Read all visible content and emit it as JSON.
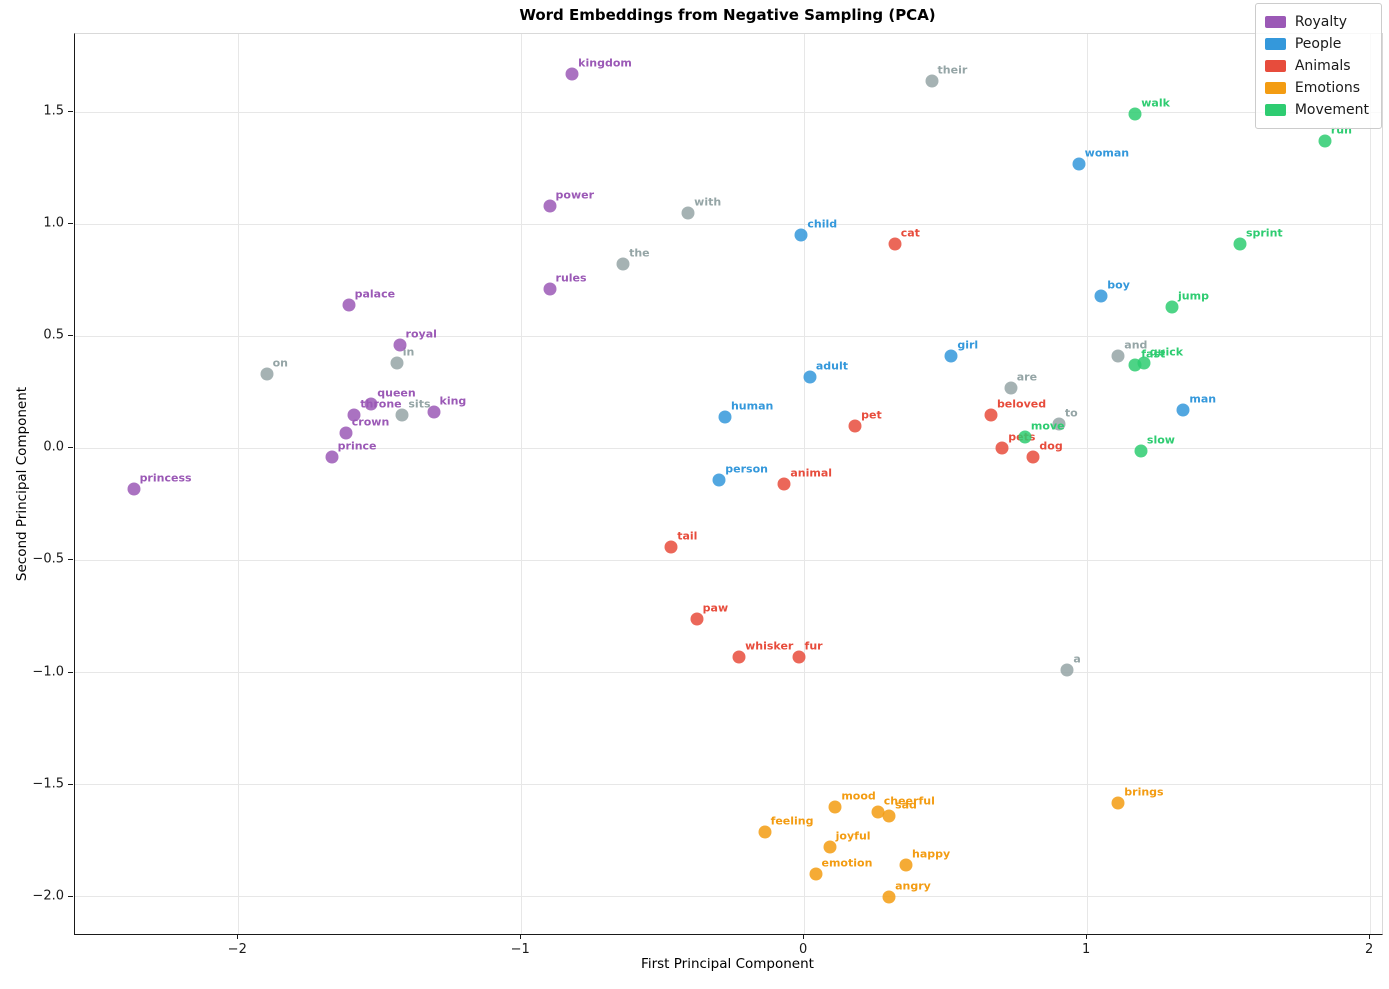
{
  "chart_data": {
    "type": "scatter",
    "title": "Word Embeddings from Negative Sampling (PCA)",
    "xlabel": "First Principal Component",
    "ylabel": "Second Principal Component",
    "grid": true,
    "legend_position": "upper right",
    "xlim": [
      -2.577,
      2.042
    ],
    "ylim": [
      -2.166,
      1.848
    ],
    "x_ticks": [
      {
        "v": -2,
        "label": "−2"
      },
      {
        "v": -1,
        "label": "−1"
      },
      {
        "v": 0,
        "label": "0"
      },
      {
        "v": 1,
        "label": "1"
      },
      {
        "v": 2,
        "label": "2"
      }
    ],
    "y_ticks": [
      {
        "v": 1.5,
        "label": "1.5"
      },
      {
        "v": 1.0,
        "label": "1.0"
      },
      {
        "v": 0.5,
        "label": "0.5"
      },
      {
        "v": 0.0,
        "label": "0.0"
      },
      {
        "v": -0.5,
        "label": "−0.5"
      },
      {
        "v": -1.0,
        "label": "−1.0"
      },
      {
        "v": -1.5,
        "label": "−1.5"
      },
      {
        "v": -2.0,
        "label": "−2.0"
      }
    ],
    "series": [
      {
        "name": "Context",
        "color": "#95a5a6",
        "in_legend": false,
        "points": [
          {
            "word": "their",
            "x": 0.45,
            "y": 1.64
          },
          {
            "word": "with",
            "x": -0.41,
            "y": 1.05
          },
          {
            "word": "the",
            "x": -0.64,
            "y": 0.82
          },
          {
            "word": "on",
            "x": -1.9,
            "y": 0.33
          },
          {
            "word": "in",
            "x": -1.44,
            "y": 0.38
          },
          {
            "word": "sits",
            "x": -1.42,
            "y": 0.15
          },
          {
            "word": "are",
            "x": 0.73,
            "y": 0.27
          },
          {
            "word": "and",
            "x": 1.11,
            "y": 0.41
          },
          {
            "word": "to",
            "x": 0.9,
            "y": 0.11
          },
          {
            "word": "a",
            "x": 0.93,
            "y": -0.99
          }
        ]
      },
      {
        "name": "Royalty",
        "color": "#9b59b6",
        "in_legend": true,
        "points": [
          {
            "word": "kingdom",
            "x": -0.82,
            "y": 1.67
          },
          {
            "word": "power",
            "x": -0.9,
            "y": 1.08
          },
          {
            "word": "rules",
            "x": -0.9,
            "y": 0.71
          },
          {
            "word": "palace",
            "x": -1.61,
            "y": 0.64
          },
          {
            "word": "royal",
            "x": -1.43,
            "y": 0.46
          },
          {
            "word": "queen",
            "x": -1.53,
            "y": 0.2
          },
          {
            "word": "throne",
            "x": -1.59,
            "y": 0.15
          },
          {
            "word": "king",
            "x": -1.31,
            "y": 0.16
          },
          {
            "word": "crown",
            "x": -1.62,
            "y": 0.07
          },
          {
            "word": "prince",
            "x": -1.67,
            "y": -0.04
          },
          {
            "word": "princess",
            "x": -2.37,
            "y": -0.18
          }
        ]
      },
      {
        "name": "People",
        "color": "#3498db",
        "in_legend": true,
        "points": [
          {
            "word": "woman",
            "x": 0.97,
            "y": 1.27
          },
          {
            "word": "child",
            "x": -0.01,
            "y": 0.95
          },
          {
            "word": "boy",
            "x": 1.05,
            "y": 0.68
          },
          {
            "word": "girl",
            "x": 0.52,
            "y": 0.41
          },
          {
            "word": "adult",
            "x": 0.02,
            "y": 0.32
          },
          {
            "word": "man",
            "x": 1.34,
            "y": 0.17
          },
          {
            "word": "human",
            "x": -0.28,
            "y": 0.14
          },
          {
            "word": "person",
            "x": -0.3,
            "y": -0.14
          }
        ]
      },
      {
        "name": "Animals",
        "color": "#e74c3c",
        "in_legend": true,
        "points": [
          {
            "word": "cat",
            "x": 0.32,
            "y": 0.91
          },
          {
            "word": "beloved",
            "x": 0.66,
            "y": 0.15
          },
          {
            "word": "pet",
            "x": 0.18,
            "y": 0.1
          },
          {
            "word": "pets",
            "x": 0.7,
            "y": 0.0
          },
          {
            "word": "dog",
            "x": 0.81,
            "y": -0.04
          },
          {
            "word": "animal",
            "x": -0.07,
            "y": -0.16
          },
          {
            "word": "tail",
            "x": -0.47,
            "y": -0.44
          },
          {
            "word": "paw",
            "x": -0.38,
            "y": -0.76
          },
          {
            "word": "whisker",
            "x": -0.23,
            "y": -0.93
          },
          {
            "word": "fur",
            "x": -0.02,
            "y": -0.93
          }
        ]
      },
      {
        "name": "Emotions",
        "color": "#f39c12",
        "in_legend": true,
        "points": [
          {
            "word": "brings",
            "x": 1.11,
            "y": -1.58
          },
          {
            "word": "mood",
            "x": 0.11,
            "y": -1.6
          },
          {
            "word": "cheerful",
            "x": 0.26,
            "y": -1.62
          },
          {
            "word": "sad",
            "x": 0.3,
            "y": -1.64
          },
          {
            "word": "feeling",
            "x": -0.14,
            "y": -1.71
          },
          {
            "word": "joyful",
            "x": 0.09,
            "y": -1.78
          },
          {
            "word": "happy",
            "x": 0.36,
            "y": -1.86
          },
          {
            "word": "emotion",
            "x": 0.04,
            "y": -1.9
          },
          {
            "word": "angry",
            "x": 0.3,
            "y": -2.0
          }
        ]
      },
      {
        "name": "Movement",
        "color": "#2ecc71",
        "in_legend": true,
        "points": [
          {
            "word": "walk",
            "x": 1.17,
            "y": 1.49
          },
          {
            "word": "run",
            "x": 1.84,
            "y": 1.37
          },
          {
            "word": "sprint",
            "x": 1.54,
            "y": 0.91
          },
          {
            "word": "jump",
            "x": 1.3,
            "y": 0.63
          },
          {
            "word": "fast",
            "x": 1.17,
            "y": 0.37
          },
          {
            "word": "quick",
            "x": 1.2,
            "y": 0.38
          },
          {
            "word": "move",
            "x": 0.78,
            "y": 0.05
          },
          {
            "word": "slow",
            "x": 1.19,
            "y": -0.01
          }
        ]
      }
    ]
  },
  "legend": {
    "items": [
      {
        "label": "Royalty",
        "color": "#9b59b6"
      },
      {
        "label": "People",
        "color": "#3498db"
      },
      {
        "label": "Animals",
        "color": "#e74c3c"
      },
      {
        "label": "Emotions",
        "color": "#f39c12"
      },
      {
        "label": "Movement",
        "color": "#2ecc71"
      }
    ]
  }
}
